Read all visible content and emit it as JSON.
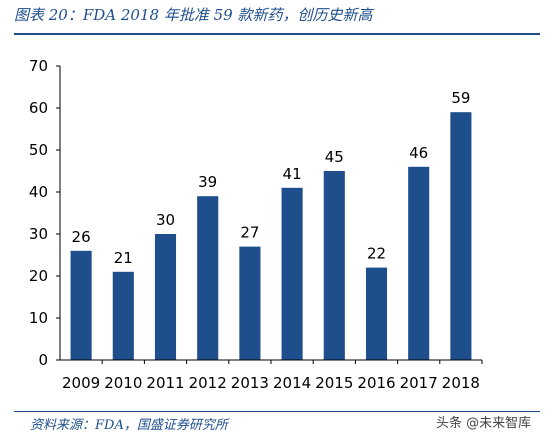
{
  "figure": {
    "title": "图表 20：FDA 2018 年批准 59 款新药，创历史新高",
    "source": "资料来源：FDA，国盛证券研究所",
    "watermark": "头条 @未来智库"
  },
  "chart_data": {
    "type": "bar",
    "categories": [
      "2009",
      "2010",
      "2011",
      "2012",
      "2013",
      "2014",
      "2015",
      "2016",
      "2017",
      "2018"
    ],
    "values": [
      26,
      21,
      30,
      39,
      27,
      41,
      45,
      22,
      46,
      59
    ],
    "ylim": [
      0,
      70
    ],
    "yticks": [
      0,
      10,
      20,
      30,
      40,
      50,
      60,
      70
    ],
    "bar_color": "#1f4e8c",
    "grid": false,
    "legend": "none",
    "data_labels": true
  }
}
